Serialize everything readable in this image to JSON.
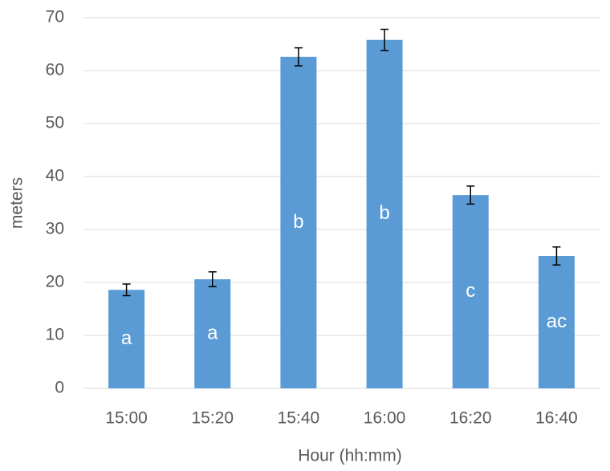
{
  "chart_data": {
    "type": "bar",
    "x_label": "Hour (hh:mm)",
    "y_label": "meters",
    "categories": [
      "15:00",
      "15:20",
      "15:40",
      "16:00",
      "16:20",
      "16:40"
    ],
    "values": [
      18.6,
      20.6,
      62.6,
      65.8,
      36.5,
      25.0
    ],
    "errors": [
      1.1,
      1.4,
      1.7,
      2.0,
      1.7,
      1.7
    ],
    "group_labels": [
      "a",
      "a",
      "b",
      "b",
      "c",
      "ac"
    ],
    "color": "#5b9bd5",
    "ylim": [
      0,
      70
    ],
    "yticks": [
      0,
      10,
      20,
      30,
      40,
      50,
      60,
      70
    ],
    "grid": true
  }
}
